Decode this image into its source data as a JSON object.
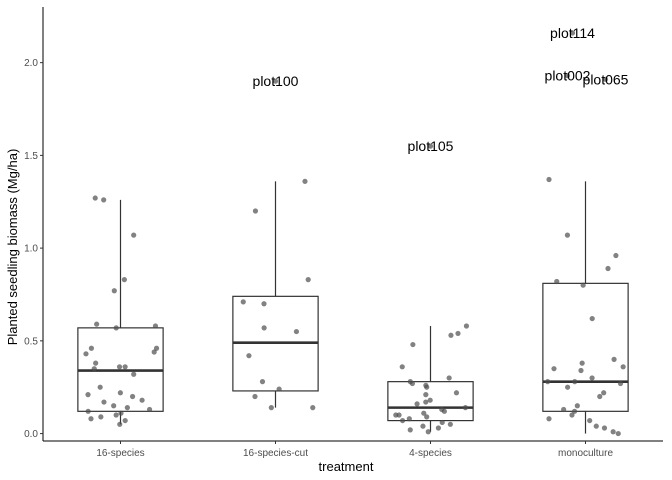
{
  "chart_data": {
    "type": "box",
    "xlabel": "treatment",
    "ylabel": "Planted seedling biomass (Mg/ha)",
    "ylim": [
      -0.04,
      2.3
    ],
    "yticks": [
      0.0,
      0.5,
      1.0,
      1.5,
      2.0
    ],
    "ytick_labels": [
      "0.0",
      "0.5",
      "1.0",
      "1.5",
      "2.0"
    ],
    "grid": false,
    "categories": [
      "16-species",
      "16-species-cut",
      "4-species",
      "monoculture"
    ],
    "boxes": [
      {
        "category": "16-species",
        "q1": 0.12,
        "median": 0.34,
        "q3": 0.57,
        "whisker_low": 0.05,
        "whisker_high": 1.26
      },
      {
        "category": "16-species-cut",
        "q1": 0.23,
        "median": 0.49,
        "q3": 0.74,
        "whisker_low": 0.14,
        "whisker_high": 1.36
      },
      {
        "category": "4-species",
        "q1": 0.07,
        "median": 0.14,
        "q3": 0.28,
        "whisker_low": 0.01,
        "whisker_high": 0.58
      },
      {
        "category": "monoculture",
        "q1": 0.12,
        "median": 0.28,
        "q3": 0.81,
        "whisker_low": 0.0,
        "whisker_high": 1.36
      }
    ],
    "points": [
      [
        0.05,
        0.07,
        0.08,
        0.09,
        0.1,
        0.11,
        0.12,
        0.13,
        0.14,
        0.15,
        0.17,
        0.18,
        0.2,
        0.21,
        0.22,
        0.25,
        0.32,
        0.35,
        0.36,
        0.36,
        0.38,
        0.43,
        0.44,
        0.46,
        0.46,
        0.57,
        0.58,
        0.59,
        0.77,
        0.83,
        1.07,
        1.26,
        1.27
      ],
      [
        0.14,
        0.14,
        0.2,
        0.24,
        0.28,
        0.42,
        0.55,
        0.57,
        0.7,
        0.71,
        0.83,
        1.2,
        1.36
      ],
      [
        0.01,
        0.02,
        0.03,
        0.04,
        0.05,
        0.06,
        0.07,
        0.08,
        0.09,
        0.1,
        0.1,
        0.11,
        0.12,
        0.13,
        0.14,
        0.16,
        0.17,
        0.18,
        0.21,
        0.22,
        0.25,
        0.26,
        0.27,
        0.28,
        0.3,
        0.36,
        0.48,
        0.53,
        0.54,
        0.58
      ],
      [
        0.0,
        0.01,
        0.03,
        0.04,
        0.07,
        0.08,
        0.1,
        0.12,
        0.13,
        0.15,
        0.2,
        0.22,
        0.25,
        0.27,
        0.28,
        0.28,
        0.3,
        0.34,
        0.35,
        0.36,
        0.38,
        0.4,
        0.62,
        0.8,
        0.82,
        0.89,
        0.96,
        1.07,
        1.37
      ]
    ],
    "outliers": [
      {
        "category": "16-species-cut",
        "label": "plot100",
        "value": 1.9
      },
      {
        "category": "4-species",
        "label": "plot105",
        "value": 1.55
      },
      {
        "category": "monoculture",
        "label": "plot114",
        "value": 2.16
      },
      {
        "category": "monoculture",
        "label": "plot002",
        "value": 1.93
      },
      {
        "category": "monoculture",
        "label": "plot065",
        "value": 1.91
      }
    ],
    "point_color": "#4d4d4d",
    "box_color": "#333333"
  }
}
